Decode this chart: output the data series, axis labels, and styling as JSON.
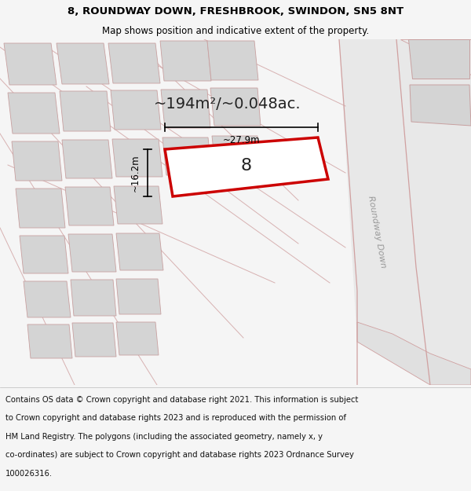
{
  "title_line1": "8, ROUNDWAY DOWN, FRESHBROOK, SWINDON, SN5 8NT",
  "title_line2": "Map shows position and indicative extent of the property.",
  "area_label": "~194m²/~0.048ac.",
  "house_number": "8",
  "dim_width": "~27.9m",
  "dim_height": "~16.2m",
  "street_label": "Roundway Down",
  "footer_lines": [
    "Contains OS data © Crown copyright and database right 2021. This information is subject",
    "to Crown copyright and database rights 2023 and is reproduced with the permission of",
    "HM Land Registry. The polygons (including the associated geometry, namely x, y",
    "co-ordinates) are subject to Crown copyright and database rights 2023 Ordnance Survey",
    "100026316."
  ],
  "bg_color": "#f5f5f5",
  "map_bg": "#ffffff",
  "road_fill": "#e8e8e8",
  "road_stroke": "#d0a0a0",
  "building_fill": "#d4d4d4",
  "building_stroke": "#c8a0a0",
  "highlight_fill": "#ffffff",
  "highlight_stroke": "#cc0000",
  "text_color": "#000000",
  "title_fontsize": 9.5,
  "subtitle_fontsize": 8.5,
  "footer_fontsize": 7.2,
  "area_fontsize": 14,
  "street_fontsize": 8,
  "dim_fontsize": 8.5,
  "number_fontsize": 16
}
